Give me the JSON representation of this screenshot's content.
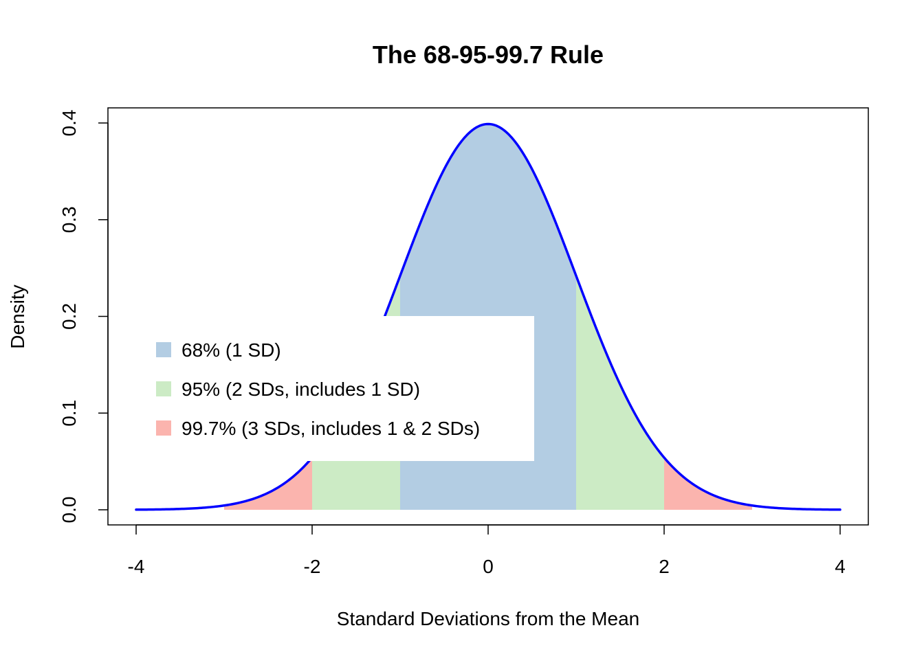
{
  "chart_data": {
    "type": "area",
    "title": "The 68-95-99.7 Rule",
    "xlabel": "Standard Deviations from the Mean",
    "ylabel": "Density",
    "xlim": [
      -4,
      4
    ],
    "ylim": [
      0,
      0.4
    ],
    "grid": false,
    "x_ticks": [
      -4,
      -2,
      0,
      2,
      4
    ],
    "x_tick_labels": [
      "-4",
      "-2",
      "0",
      "2",
      "4"
    ],
    "y_ticks": [
      0.0,
      0.1,
      0.2,
      0.3,
      0.4
    ],
    "y_tick_labels": [
      "0.0",
      "0.1",
      "0.2",
      "0.3",
      "0.4"
    ],
    "curve": {
      "distribution": "standard normal density",
      "mean": 0,
      "sd": 1,
      "x_range": [
        -4,
        4
      ],
      "color": "#0000FF"
    },
    "regions": [
      {
        "label": "99.7% (3 SDs, includes 1 & 2 SDs)",
        "from": -3,
        "to": 3,
        "color": "#FBB4AE"
      },
      {
        "label": "95% (2 SDs, includes 1 SD)",
        "from": -2,
        "to": 2,
        "color": "#CCEBC5"
      },
      {
        "label": "68% (1 SD)",
        "from": -1,
        "to": 1,
        "color": "#B3CDE3"
      }
    ],
    "legend": {
      "position": "left",
      "items": [
        {
          "label": "68% (1 SD)",
          "color": "#B3CDE3"
        },
        {
          "label": "95% (2 SDs, includes 1 SD)",
          "color": "#CCEBC5"
        },
        {
          "label": "99.7% (3 SDs, includes 1 & 2 SDs)",
          "color": "#FBB4AE"
        }
      ]
    }
  }
}
